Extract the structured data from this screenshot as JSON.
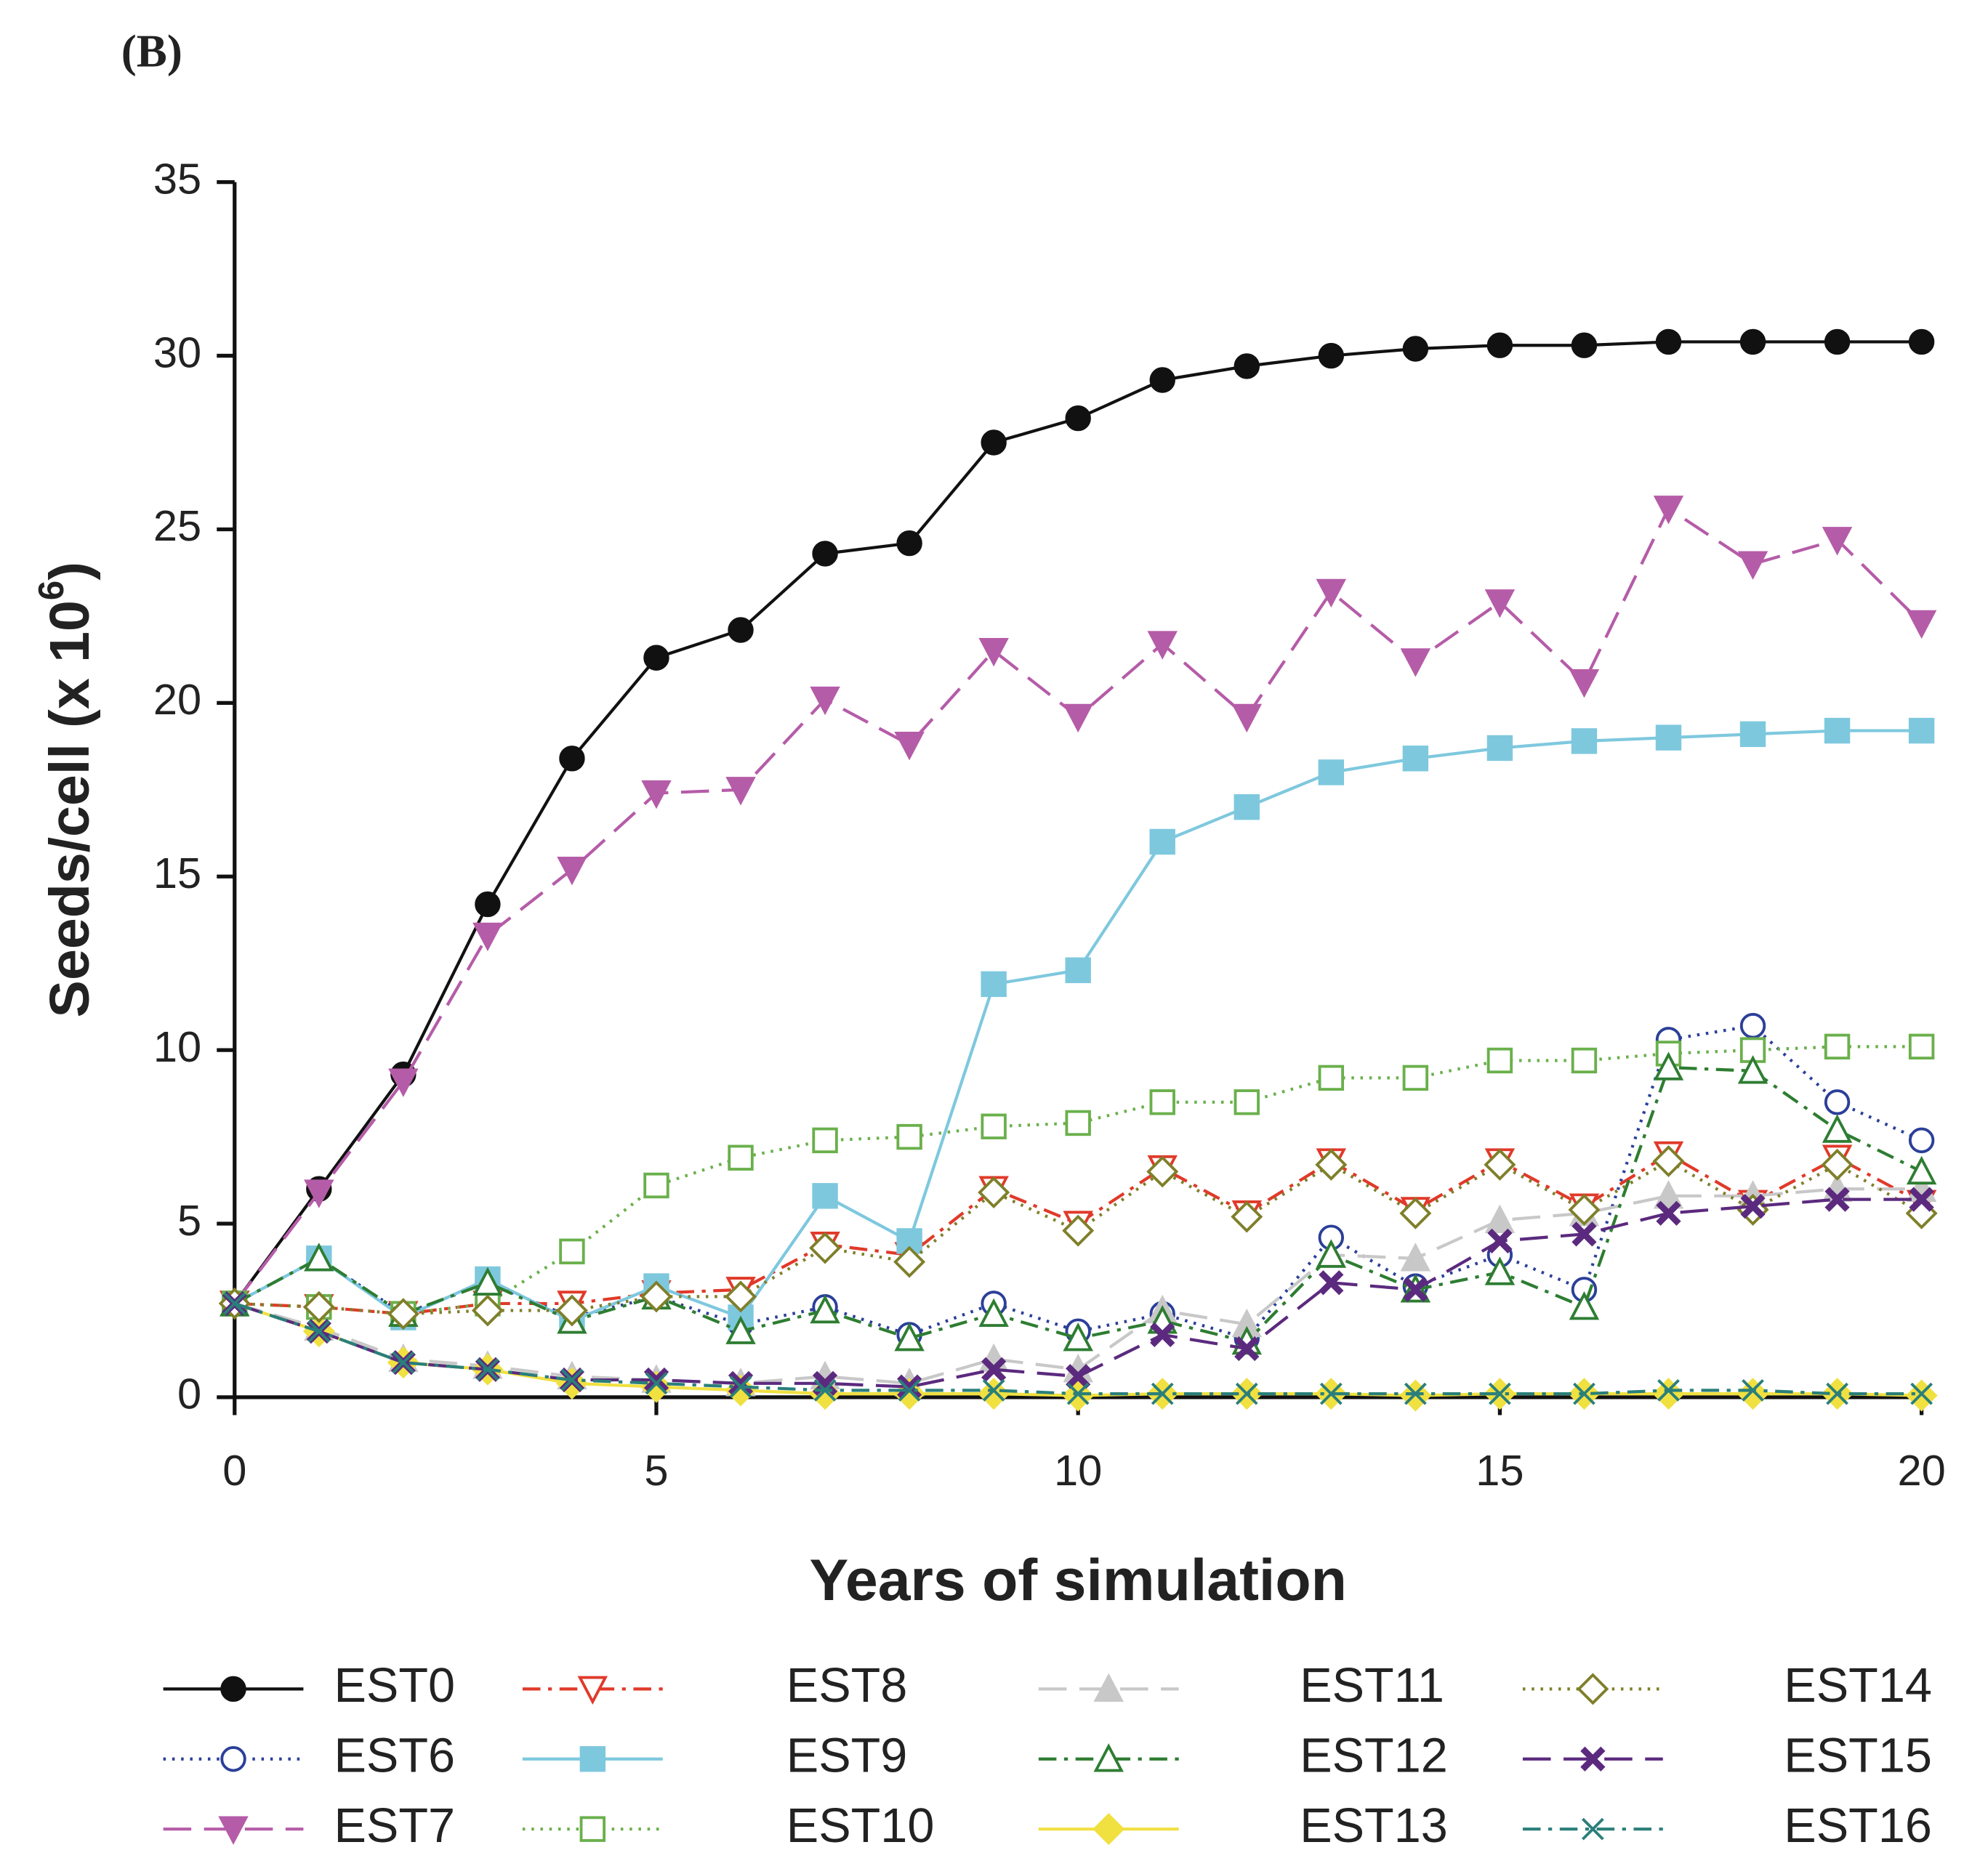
{
  "chart_data": {
    "type": "line",
    "panel_label": "(B)",
    "xlabel": "Years of simulation",
    "ylabel": "Seeds/cell (x 10",
    "ylabel_sup": "6",
    "ylabel_end": ")",
    "x": [
      0,
      1,
      2,
      3,
      4,
      5,
      6,
      7,
      8,
      9,
      10,
      11,
      12,
      13,
      14,
      15,
      16,
      17,
      18,
      19,
      20
    ],
    "xlim": [
      0,
      20
    ],
    "xticks": [
      0,
      5,
      10,
      15,
      20
    ],
    "ylim": [
      0,
      35
    ],
    "yticks": [
      0,
      5,
      10,
      15,
      20,
      25,
      30,
      35
    ],
    "legend": "bottom",
    "series": [
      {
        "name": "EST0",
        "color": "#111111",
        "marker": "circle",
        "filled": true,
        "dash": "solid",
        "values": [
          2.7,
          6.0,
          9.3,
          14.2,
          18.4,
          21.3,
          22.1,
          24.3,
          24.6,
          27.5,
          28.2,
          29.3,
          29.7,
          30.0,
          30.2,
          30.3,
          30.3,
          30.4,
          30.4,
          30.4,
          30.4
        ]
      },
      {
        "name": "EST6",
        "color": "#2b3f99",
        "marker": "circle",
        "filled": false,
        "dash": "dot",
        "values": [
          2.7,
          4.0,
          2.4,
          3.3,
          2.3,
          2.9,
          2.1,
          2.6,
          1.8,
          2.7,
          1.9,
          2.4,
          1.7,
          4.6,
          3.2,
          4.1,
          3.1,
          10.3,
          10.7,
          8.5,
          7.4
        ]
      },
      {
        "name": "EST7",
        "color": "#b55ca8",
        "marker": "tri-down",
        "filled": true,
        "dash": "dash",
        "values": [
          2.7,
          5.9,
          9.1,
          13.3,
          15.2,
          17.4,
          17.5,
          20.1,
          18.8,
          21.5,
          19.6,
          21.7,
          19.6,
          23.2,
          21.2,
          22.9,
          20.6,
          25.6,
          24.0,
          24.7,
          22.3
        ]
      },
      {
        "name": "EST8",
        "color": "#e03a2a",
        "marker": "tri-down",
        "filled": false,
        "dash": "dashdot",
        "values": [
          2.7,
          2.6,
          2.4,
          2.7,
          2.7,
          3.0,
          3.1,
          4.4,
          4.1,
          6.0,
          5.0,
          6.6,
          5.3,
          6.8,
          5.4,
          6.8,
          5.5,
          7.0,
          5.6,
          6.9,
          5.6
        ]
      },
      {
        "name": "EST9",
        "color": "#7ec8de",
        "marker": "square",
        "filled": true,
        "dash": "solid",
        "values": [
          2.7,
          4.0,
          2.3,
          3.4,
          2.2,
          3.2,
          2.3,
          5.8,
          4.5,
          11.9,
          12.3,
          16.0,
          17.0,
          18.0,
          18.4,
          18.7,
          18.9,
          19.0,
          19.1,
          19.2,
          19.2
        ]
      },
      {
        "name": "EST10",
        "color": "#6ab04c",
        "marker": "square",
        "filled": false,
        "dash": "dot",
        "values": [
          2.7,
          2.6,
          2.4,
          2.7,
          4.2,
          6.1,
          6.9,
          7.4,
          7.5,
          7.8,
          7.9,
          8.5,
          8.5,
          9.2,
          9.2,
          9.7,
          9.7,
          9.9,
          10.0,
          10.1,
          10.1
        ]
      },
      {
        "name": "EST11",
        "color": "#c8c8c8",
        "marker": "tri-up",
        "filled": true,
        "dash": "dash",
        "values": [
          2.7,
          2.0,
          1.1,
          0.9,
          0.6,
          0.5,
          0.4,
          0.6,
          0.4,
          1.1,
          0.8,
          2.5,
          2.1,
          4.1,
          4.0,
          5.1,
          5.3,
          5.8,
          5.8,
          6.0,
          6.0
        ]
      },
      {
        "name": "EST12",
        "color": "#2e7d32",
        "marker": "tri-up",
        "filled": false,
        "dash": "dashdot",
        "values": [
          2.7,
          4.0,
          2.4,
          3.3,
          2.2,
          2.9,
          1.9,
          2.5,
          1.7,
          2.4,
          1.7,
          2.2,
          1.6,
          4.1,
          3.1,
          3.6,
          2.6,
          9.5,
          9.4,
          7.7,
          6.5
        ]
      },
      {
        "name": "EST13",
        "color": "#f0e040",
        "marker": "diamond",
        "filled": true,
        "dash": "solid",
        "values": [
          2.7,
          1.9,
          1.0,
          0.8,
          0.4,
          0.3,
          0.2,
          0.1,
          0.1,
          0.1,
          0.05,
          0.1,
          0.1,
          0.1,
          0.05,
          0.1,
          0.1,
          0.1,
          0.1,
          0.1,
          0.05
        ]
      },
      {
        "name": "EST14",
        "color": "#7f7f2a",
        "marker": "diamond",
        "filled": false,
        "dash": "dot",
        "values": [
          2.7,
          2.6,
          2.4,
          2.5,
          2.5,
          2.9,
          2.9,
          4.3,
          3.9,
          5.9,
          4.8,
          6.5,
          5.2,
          6.7,
          5.3,
          6.7,
          5.4,
          6.8,
          5.4,
          6.7,
          5.3
        ]
      },
      {
        "name": "EST15",
        "color": "#5b2a7e",
        "marker": "cross",
        "filled": true,
        "dash": "dash",
        "values": [
          2.7,
          1.9,
          1.0,
          0.8,
          0.5,
          0.5,
          0.4,
          0.4,
          0.3,
          0.8,
          0.6,
          1.8,
          1.4,
          3.3,
          3.1,
          4.5,
          4.7,
          5.3,
          5.5,
          5.7,
          5.7
        ]
      },
      {
        "name": "EST16",
        "color": "#2a7f7a",
        "marker": "x",
        "filled": false,
        "dash": "dashdot",
        "values": [
          2.7,
          1.9,
          1.0,
          0.8,
          0.5,
          0.4,
          0.3,
          0.2,
          0.2,
          0.2,
          0.1,
          0.1,
          0.1,
          0.1,
          0.1,
          0.1,
          0.1,
          0.2,
          0.2,
          0.1,
          0.1
        ]
      }
    ]
  }
}
